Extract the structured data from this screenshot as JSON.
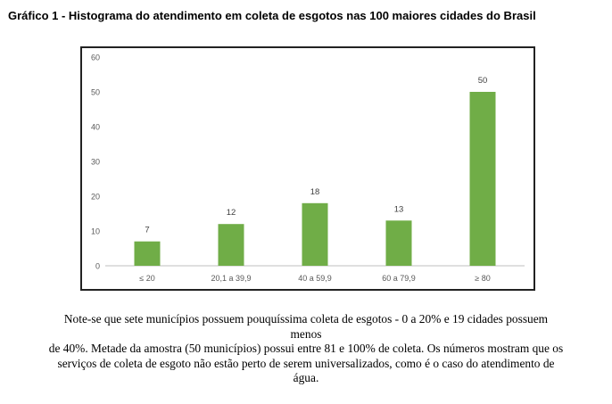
{
  "figure": {
    "title": "Gráfico 1 - Histograma do atendimento em coleta de esgotos nas 100 maiores cidades do Brasil"
  },
  "chart_data": {
    "type": "bar",
    "categories": [
      "≤ 20",
      "20,1 a 39,9",
      "40 a 59,9",
      "60 a 79,9",
      "≥ 80"
    ],
    "values": [
      7,
      12,
      18,
      13,
      50
    ],
    "yticks": [
      0,
      10,
      20,
      30,
      40,
      50,
      60
    ],
    "ylim": [
      0,
      60
    ],
    "grid": false,
    "bar_color": "#70ad47",
    "data_labels": true
  },
  "note": {
    "lines": [
      "Note-se que sete municípios possuem pouquíssima coleta de esgotos - 0 a 20% e 19 cidades possuem",
      "menos",
      "de 40%. Metade da amostra (50 municípios) possui entre 81 e 100% de coleta. Os números mostram que os",
      "serviços de coleta de esgoto não estão perto de serem universalizados, como é o caso do atendimento de",
      "água."
    ]
  }
}
